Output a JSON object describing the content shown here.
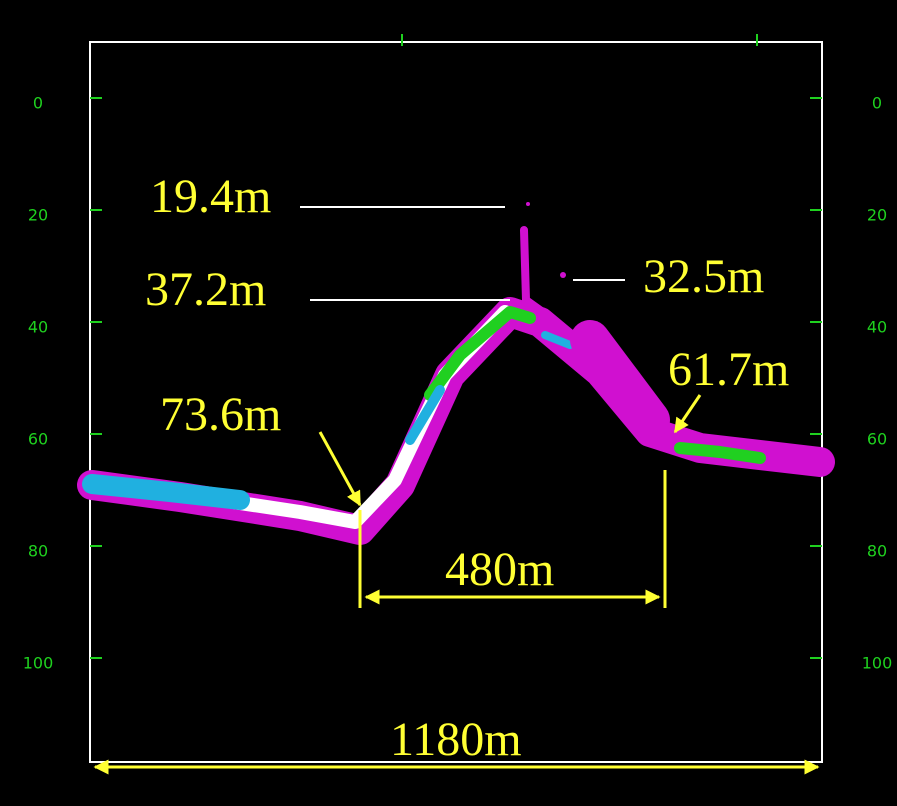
{
  "depth_axis": {
    "ticks": [
      0,
      20,
      40,
      60,
      80,
      100
    ]
  },
  "annotations": {
    "peak_depth": "19.4m",
    "crest_depth": "37.2m",
    "right_peak_depth": "32.5m",
    "right_foot_depth": "61.7m",
    "left_foot_depth": "73.6m",
    "base_width": "480m",
    "total_width": "1180m"
  }
}
